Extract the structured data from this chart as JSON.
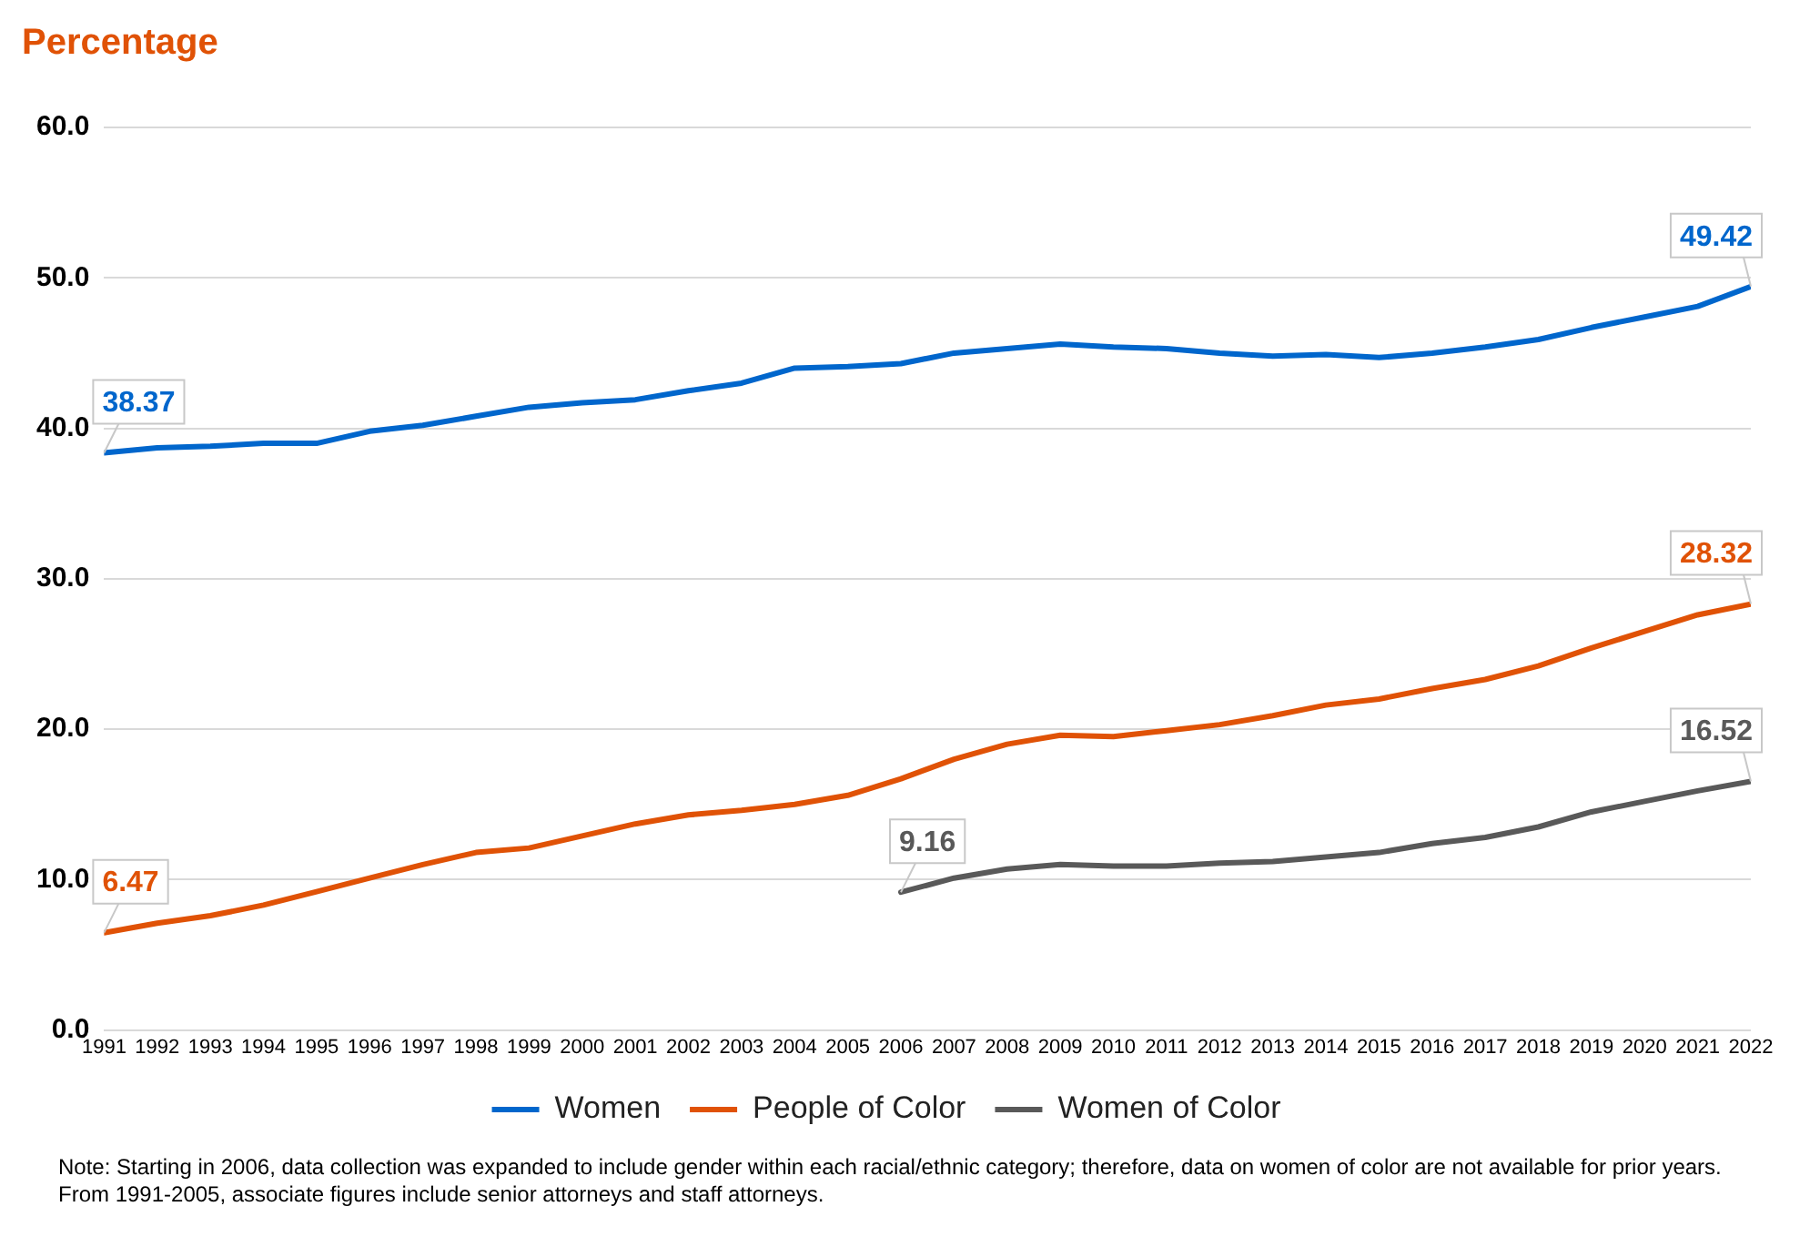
{
  "chart_data": {
    "type": "line",
    "title": "Percentage",
    "x": [
      1991,
      1992,
      1993,
      1994,
      1995,
      1996,
      1997,
      1998,
      1999,
      2000,
      2001,
      2002,
      2003,
      2004,
      2005,
      2006,
      2007,
      2008,
      2009,
      2010,
      2011,
      2012,
      2013,
      2014,
      2015,
      2016,
      2017,
      2018,
      2019,
      2020,
      2021,
      2022
    ],
    "xticks": [
      1991,
      1992,
      1993,
      1994,
      1995,
      1996,
      1997,
      1998,
      1999,
      2000,
      2001,
      2002,
      2003,
      2004,
      2005,
      2006,
      2007,
      2008,
      2009,
      2010,
      2011,
      2012,
      2013,
      2014,
      2015,
      2016,
      2017,
      2018,
      2019,
      2020,
      2021,
      2022
    ],
    "xlim": [
      1991,
      2022
    ],
    "ylim": [
      0,
      60
    ],
    "yticks": [
      {
        "value": 0,
        "label": "0.0"
      },
      {
        "value": 10,
        "label": "10.0"
      },
      {
        "value": 20,
        "label": "20.0"
      },
      {
        "value": 30,
        "label": "30.0"
      },
      {
        "value": 40,
        "label": "40.0"
      },
      {
        "value": 50,
        "label": "50.0"
      },
      {
        "value": 60,
        "label": "60.0"
      }
    ],
    "grid": "y",
    "legend": "bottom",
    "marker": "none",
    "line_style": "solid",
    "series": [
      {
        "name": "Women",
        "color": "#0066cc",
        "values": [
          38.37,
          38.7,
          38.8,
          39.0,
          39.0,
          39.8,
          40.2,
          40.8,
          41.4,
          41.7,
          41.9,
          42.5,
          43.0,
          44.0,
          44.1,
          44.3,
          45.0,
          45.3,
          45.6,
          45.4,
          45.3,
          45.0,
          44.8,
          44.9,
          44.7,
          45.0,
          45.4,
          45.9,
          46.7,
          47.4,
          48.1,
          49.42
        ],
        "value_labels": [
          "38.37",
          null,
          null,
          null,
          null,
          null,
          null,
          null,
          null,
          null,
          null,
          null,
          null,
          null,
          null,
          null,
          null,
          null,
          null,
          null,
          null,
          null,
          null,
          null,
          null,
          null,
          null,
          null,
          null,
          null,
          null,
          "49.42"
        ]
      },
      {
        "name": "People of Color",
        "color": "#e05206",
        "values": [
          6.47,
          7.1,
          7.6,
          8.3,
          9.2,
          10.1,
          11.0,
          11.8,
          12.1,
          12.9,
          13.7,
          14.3,
          14.6,
          15.0,
          15.6,
          16.7,
          18.0,
          19.0,
          19.6,
          19.5,
          19.9,
          20.3,
          20.9,
          21.6,
          22.0,
          22.7,
          23.3,
          24.2,
          25.4,
          26.5,
          27.6,
          28.32
        ],
        "value_labels": [
          "6.47",
          null,
          null,
          null,
          null,
          null,
          null,
          null,
          null,
          null,
          null,
          null,
          null,
          null,
          null,
          null,
          null,
          null,
          null,
          null,
          null,
          null,
          null,
          null,
          null,
          null,
          null,
          null,
          null,
          null,
          null,
          "28.32"
        ]
      },
      {
        "name": "Women of Color",
        "color": "#595959",
        "values": [
          null,
          null,
          null,
          null,
          null,
          null,
          null,
          null,
          null,
          null,
          null,
          null,
          null,
          null,
          null,
          9.16,
          10.1,
          10.7,
          11.0,
          10.9,
          10.9,
          11.1,
          11.2,
          11.5,
          11.8,
          12.4,
          12.8,
          13.5,
          14.5,
          15.2,
          15.9,
          16.52
        ],
        "value_labels": [
          null,
          null,
          null,
          null,
          null,
          null,
          null,
          null,
          null,
          null,
          null,
          null,
          null,
          null,
          null,
          "9.16",
          null,
          null,
          null,
          null,
          null,
          null,
          null,
          null,
          null,
          null,
          null,
          null,
          null,
          null,
          null,
          "16.52"
        ]
      }
    ],
    "annotations": [
      "Note: Starting in 2006, data collection was expanded to include gender within each racial/ethnic category; therefore, data on women of color are not available for prior years.",
      "From 1991-2005, associate figures include senior attorneys and staff attorneys."
    ]
  }
}
